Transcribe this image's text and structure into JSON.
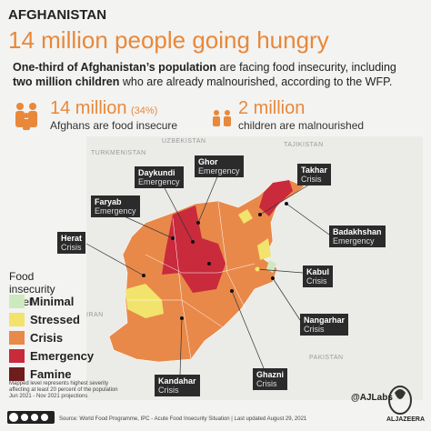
{
  "header": {
    "kicker": "AFGHANISTAN",
    "title": "14 million people going hungry",
    "subtitle": [
      {
        "text": "One-third of Afghanistan’s population",
        "bold": true
      },
      {
        "text": " are facing food insecurity, including ",
        "bold": false
      },
      {
        "text": "two million children",
        "bold": true
      },
      {
        "text": " who are already malnourished, according to the WFP.",
        "bold": false
      }
    ]
  },
  "stats": [
    {
      "value": "14 million",
      "note": "(34%)",
      "label": "Afghans are food insecure"
    },
    {
      "value": "2 million",
      "label": "children are malnourished"
    }
  ],
  "countries": [
    "UZBEKISTAN",
    "TAJIKISTAN",
    "TURKMENISTAN",
    "IRAN",
    "PAKISTAN"
  ],
  "callouts": [
    {
      "name": "Daykundi",
      "level": "Emergency"
    },
    {
      "name": "Ghor",
      "level": "Emergency"
    },
    {
      "name": "Takhar",
      "level": "Crisis"
    },
    {
      "name": "Faryab",
      "level": "Emergency"
    },
    {
      "name": "Herat",
      "level": "Crisis"
    },
    {
      "name": "Badakhshan",
      "level": "Emergency"
    },
    {
      "name": "Kabul",
      "level": "Crisis"
    },
    {
      "name": "Nangarhar",
      "level": "Crisis"
    },
    {
      "name": "Kandahar",
      "level": "Crisis"
    },
    {
      "name": "Ghazni",
      "level": "Crisis"
    }
  ],
  "legend": {
    "title": "Food insecurity level",
    "items": [
      {
        "name": "Minimal",
        "color": "#cdeabf"
      },
      {
        "name": "Stressed",
        "color": "#f2e36c"
      },
      {
        "name": "Crisis",
        "color": "#e8894a"
      },
      {
        "name": "Emergency",
        "color": "#c92a3c"
      },
      {
        "name": "Famine",
        "color": "#6e1c1c"
      }
    ]
  },
  "footnote": "Mapped level represents highest severity affecting at least 20 percent of the population Jun 2021 - Nov 2021 projections",
  "footer": {
    "source": "Source: World Food Programme, IPC - Acute Food Insecurity Situation | Last updated August 29, 2021",
    "handle": "@AJLabs",
    "brand": "ALJAZEERA"
  }
}
